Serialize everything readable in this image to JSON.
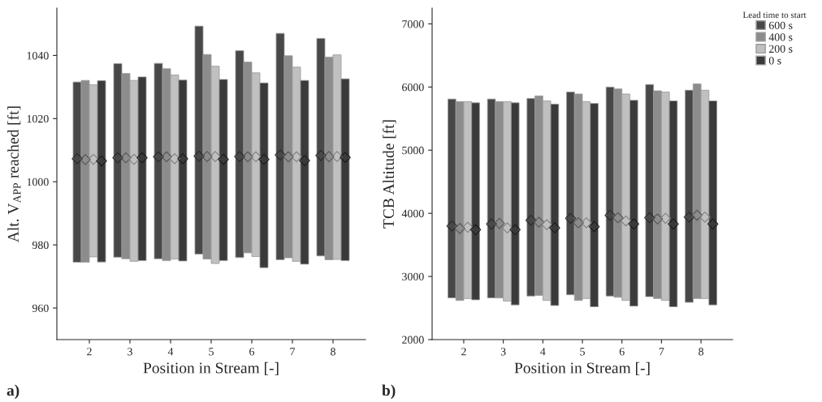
{
  "chart_data": [
    {
      "type": "bar",
      "xlabel": "Position in Stream [-]",
      "ylabel": "Alt. V$_{APP}$ reached [ft]",
      "categories": [
        "2",
        "3",
        "4",
        "5",
        "6",
        "7",
        "8"
      ],
      "ylim": [
        950,
        1055
      ],
      "yticks": [
        960,
        980,
        1000,
        1020,
        1040
      ],
      "grid": false,
      "legend": false,
      "annotations": [
        "a)"
      ],
      "series": [
        {
          "color": "#484848",
          "base": [
            974.5,
            976.1,
            975.6,
            977.1,
            976.0,
            975.3,
            976.5
          ],
          "values": [
            57.1,
            61.3,
            61.9,
            72.2,
            65.5,
            71.7,
            68.9
          ]
        },
        {
          "color": "#8c8c8c",
          "base": [
            974.5,
            975.6,
            975.0,
            975.5,
            977.5,
            975.9,
            975.3
          ],
          "values": [
            57.6,
            58.7,
            60.8,
            64.8,
            60.4,
            64.0,
            64.2
          ]
        },
        {
          "color": "#c0c0c0",
          "base": [
            976.2,
            974.8,
            975.5,
            974.1,
            976.3,
            974.8,
            975.4
          ],
          "values": [
            54.5,
            57.3,
            58.3,
            62.5,
            58.2,
            61.5,
            64.8
          ]
        },
        {
          "color": "#3a3a3a",
          "base": [
            974.6,
            975.0,
            974.9,
            975.0,
            972.8,
            973.9,
            975.0
          ],
          "values": [
            57.4,
            58.2,
            57.3,
            57.4,
            58.5,
            58.2,
            57.6
          ]
        },
        {
          "type": "scatter",
          "marker": "diamond",
          "color": "#2a2a2a",
          "x": [
            "2",
            "3",
            "4",
            "5",
            "6",
            "7",
            "8"
          ],
          "values": [
            1007.3,
            1007.6,
            1007.9,
            1008.1,
            1008.0,
            1008.5,
            1008.3
          ]
        },
        {
          "type": "scatter",
          "marker": "diamond",
          "color": "#555555",
          "x": [
            "2",
            "3",
            "4",
            "5",
            "6",
            "7",
            "8"
          ],
          "values": [
            1007.0,
            1007.6,
            1007.9,
            1008.0,
            1007.9,
            1007.9,
            1008.0
          ]
        },
        {
          "type": "scatter",
          "marker": "diamond",
          "color": "#808080",
          "x": [
            "2",
            "3",
            "4",
            "5",
            "6",
            "7",
            "8"
          ],
          "values": [
            1007.1,
            1007.1,
            1007.3,
            1008.0,
            1007.9,
            1007.9,
            1008.0
          ]
        },
        {
          "type": "scatter",
          "marker": "diamond",
          "color": "#1a1a1a",
          "x": [
            "2",
            "3",
            "4",
            "5",
            "6",
            "7",
            "8"
          ],
          "values": [
            1006.6,
            1007.6,
            1007.3,
            1007.1,
            1007.1,
            1006.7,
            1007.7
          ]
        }
      ]
    },
    {
      "type": "bar",
      "xlabel": "Position in Stream [-]",
      "ylabel": "TCB Altitude [ft]",
      "categories": [
        "2",
        "3",
        "4",
        "5",
        "6",
        "7",
        "8"
      ],
      "ylim": [
        2000,
        7250
      ],
      "yticks": [
        2000,
        3000,
        4000,
        5000,
        6000,
        7000
      ],
      "grid": false,
      "legend": "top right",
      "legend_title": "Lead time to start",
      "annotations": [
        "b)"
      ],
      "series": [
        {
          "name": "600 s",
          "color": "#484848",
          "base": [
            2660,
            2660,
            2690,
            2710,
            2690,
            2680,
            2590
          ],
          "values": [
            3150,
            3150,
            3130,
            3210,
            3310,
            3360,
            3360
          ]
        },
        {
          "name": "400 s",
          "color": "#8c8c8c",
          "base": [
            2620,
            2660,
            2700,
            2620,
            2670,
            2650,
            2650
          ],
          "values": [
            3150,
            3110,
            3160,
            3270,
            3300,
            3290,
            3400
          ]
        },
        {
          "name": "200 s",
          "color": "#c0c0c0",
          "base": [
            2650,
            2610,
            2620,
            2650,
            2620,
            2620,
            2650
          ],
          "values": [
            3120,
            3160,
            3160,
            3120,
            3270,
            3300,
            3300
          ]
        },
        {
          "name": "0 s",
          "color": "#3a3a3a",
          "base": [
            2630,
            2550,
            2540,
            2520,
            2530,
            2520,
            2550
          ],
          "values": [
            3120,
            3200,
            3190,
            3220,
            3260,
            3260,
            3230
          ]
        },
        {
          "type": "scatter",
          "marker": "diamond",
          "color": "#2a2a2a",
          "x": [
            "2",
            "3",
            "4",
            "5",
            "6",
            "7",
            "8"
          ],
          "values": [
            3800,
            3830,
            3890,
            3920,
            3970,
            3930,
            3940
          ]
        },
        {
          "type": "scatter",
          "marker": "diamond",
          "color": "#555555",
          "x": [
            "2",
            "3",
            "4",
            "5",
            "6",
            "7",
            "8"
          ],
          "values": [
            3760,
            3840,
            3860,
            3850,
            3930,
            3910,
            3970
          ]
        },
        {
          "type": "scatter",
          "marker": "diamond",
          "color": "#808080",
          "x": [
            "2",
            "3",
            "4",
            "5",
            "6",
            "7",
            "8"
          ],
          "values": [
            3780,
            3770,
            3820,
            3850,
            3880,
            3920,
            3940
          ]
        },
        {
          "type": "scatter",
          "marker": "diamond",
          "color": "#1a1a1a",
          "x": [
            "2",
            "3",
            "4",
            "5",
            "6",
            "7",
            "8"
          ],
          "values": [
            3740,
            3740,
            3770,
            3790,
            3830,
            3830,
            3830
          ]
        }
      ]
    }
  ]
}
